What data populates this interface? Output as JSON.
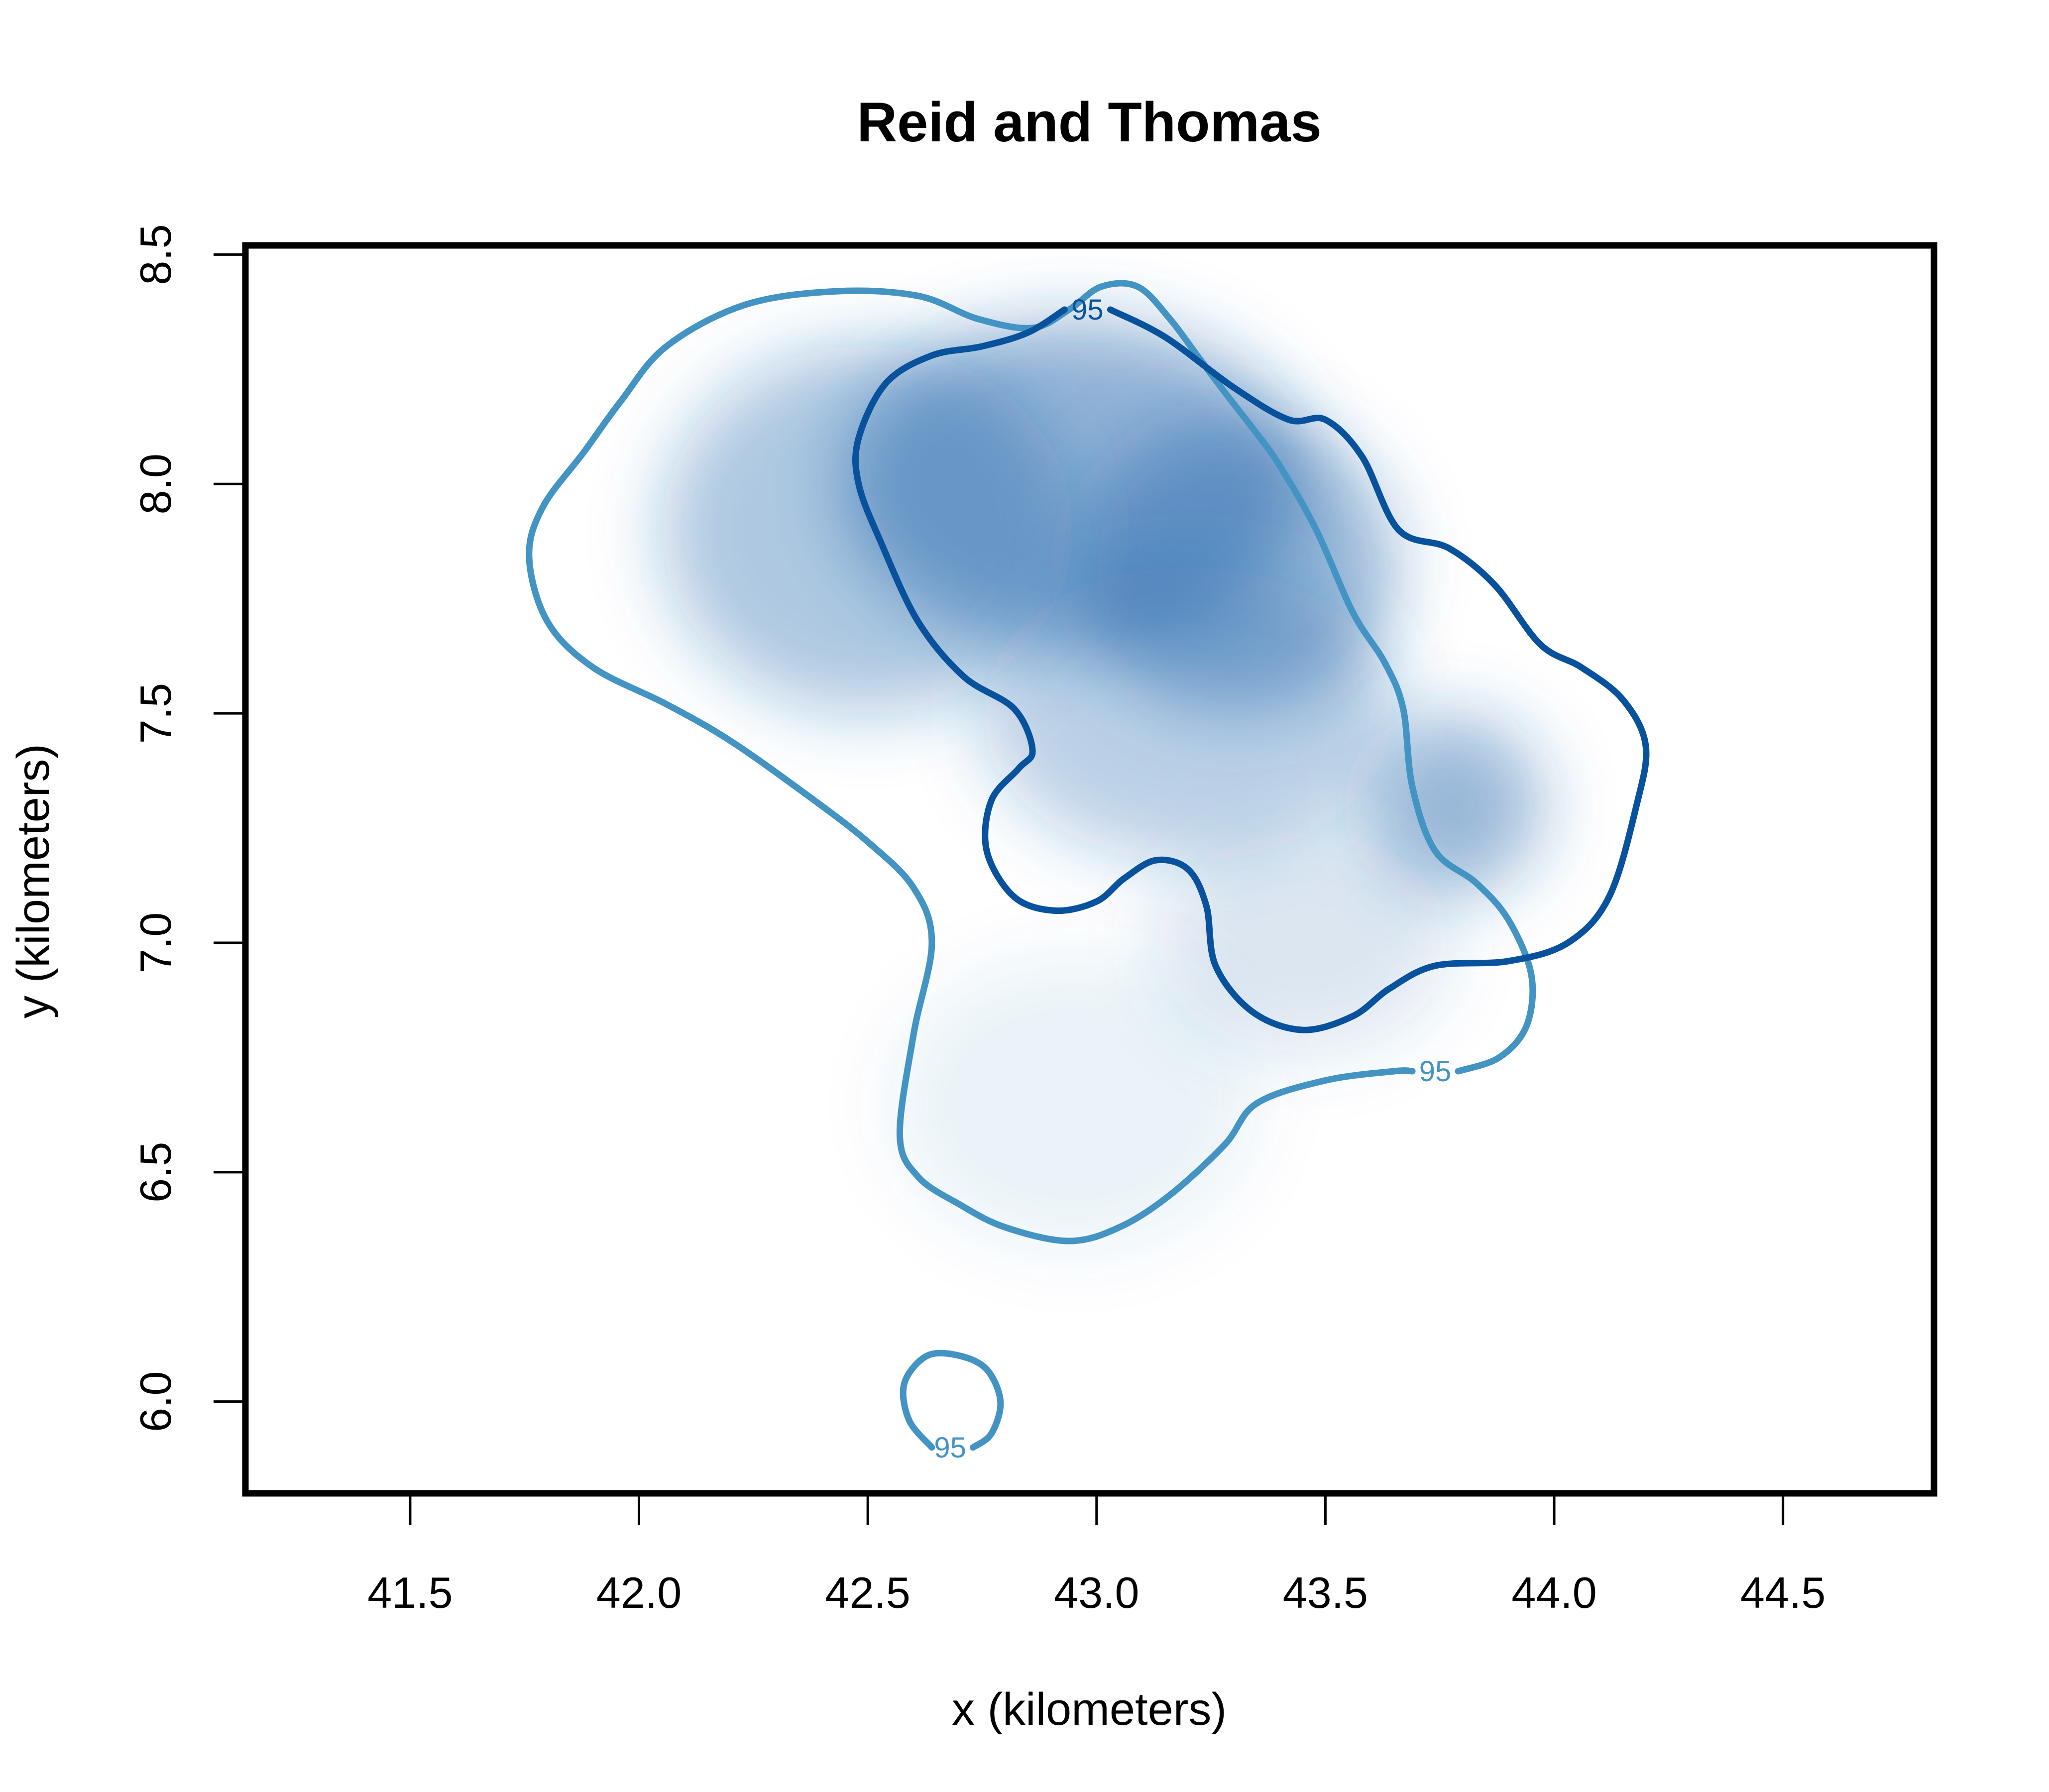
{
  "chart_data": {
    "type": "contour",
    "title": "Reid and Thomas",
    "xlabel": "x (kilometers)",
    "ylabel": "y (kilometers)",
    "xlim": [
      41.14,
      44.83
    ],
    "ylim": [
      5.8,
      8.52
    ],
    "x_ticks": [
      41.5,
      42.0,
      42.5,
      43.0,
      43.5,
      44.0,
      44.5
    ],
    "x_tick_labels": [
      "41.5",
      "42.0",
      "42.5",
      "43.0",
      "43.5",
      "44.0",
      "44.5"
    ],
    "y_ticks": [
      6.0,
      6.5,
      7.0,
      7.5,
      8.0,
      8.5
    ],
    "y_tick_labels": [
      "6.0",
      "6.5",
      "7.0",
      "7.5",
      "8.0",
      "8.5"
    ],
    "density_color": "#2166ac",
    "density_hotspots": [
      {
        "x": 42.95,
        "y": 8.0,
        "sd_x": 0.32,
        "sd_y": 0.22,
        "weight": 0.9
      },
      {
        "x": 43.3,
        "y": 7.82,
        "sd_x": 0.22,
        "sd_y": 0.2,
        "weight": 0.85
      },
      {
        "x": 42.5,
        "y": 7.9,
        "sd_x": 0.28,
        "sd_y": 0.25,
        "weight": 0.65
      },
      {
        "x": 43.2,
        "y": 7.5,
        "sd_x": 0.28,
        "sd_y": 0.2,
        "weight": 0.55
      },
      {
        "x": 43.78,
        "y": 7.3,
        "sd_x": 0.12,
        "sd_y": 0.12,
        "weight": 0.85
      },
      {
        "x": 43.45,
        "y": 7.0,
        "sd_x": 0.2,
        "sd_y": 0.15,
        "weight": 0.3
      },
      {
        "x": 42.95,
        "y": 6.65,
        "sd_x": 0.25,
        "sd_y": 0.2,
        "weight": 0.15
      }
    ],
    "contours": [
      {
        "level_label": "95",
        "color": "#4393c3",
        "label_at": {
          "x": 43.74,
          "y": 6.72
        },
        "points": [
          [
            43.79,
            6.72
          ],
          [
            43.88,
            6.75
          ],
          [
            43.94,
            6.82
          ],
          [
            43.95,
            6.93
          ],
          [
            43.9,
            7.05
          ],
          [
            43.83,
            7.13
          ],
          [
            43.74,
            7.2
          ],
          [
            43.69,
            7.34
          ],
          [
            43.67,
            7.51
          ],
          [
            43.63,
            7.61
          ],
          [
            43.56,
            7.72
          ],
          [
            43.48,
            7.9
          ],
          [
            43.4,
            8.04
          ],
          [
            43.35,
            8.11
          ],
          [
            43.28,
            8.2
          ],
          [
            43.22,
            8.28
          ],
          [
            43.16,
            8.36
          ],
          [
            43.09,
            8.43
          ],
          [
            43.01,
            8.43
          ],
          [
            42.94,
            8.38
          ],
          [
            42.86,
            8.34
          ],
          [
            42.74,
            8.36
          ],
          [
            42.61,
            8.41
          ],
          [
            42.43,
            8.42
          ],
          [
            42.23,
            8.39
          ],
          [
            42.06,
            8.3
          ],
          [
            41.96,
            8.18
          ],
          [
            41.88,
            8.07
          ],
          [
            41.79,
            7.95
          ],
          [
            41.76,
            7.84
          ],
          [
            41.8,
            7.7
          ],
          [
            41.9,
            7.6
          ],
          [
            42.06,
            7.52
          ],
          [
            42.2,
            7.44
          ],
          [
            42.37,
            7.32
          ],
          [
            42.5,
            7.22
          ],
          [
            42.6,
            7.12
          ],
          [
            42.64,
            7.0
          ],
          [
            42.6,
            6.8
          ],
          [
            42.57,
            6.58
          ],
          [
            42.61,
            6.49
          ],
          [
            42.7,
            6.43
          ],
          [
            42.8,
            6.38
          ],
          [
            42.94,
            6.35
          ],
          [
            43.05,
            6.38
          ],
          [
            43.16,
            6.45
          ],
          [
            43.28,
            6.56
          ],
          [
            43.35,
            6.65
          ],
          [
            43.5,
            6.7
          ],
          [
            43.65,
            6.72
          ],
          [
            43.69,
            6.72
          ]
        ]
      },
      {
        "level_label": "95",
        "color": "#4393c3",
        "label_at": {
          "x": 42.68,
          "y": 5.9
        },
        "points": [
          [
            42.73,
            5.9
          ],
          [
            42.77,
            5.93
          ],
          [
            42.79,
            6.0
          ],
          [
            42.76,
            6.07
          ],
          [
            42.7,
            6.1
          ],
          [
            42.63,
            6.1
          ],
          [
            42.58,
            6.04
          ],
          [
            42.59,
            5.96
          ],
          [
            42.64,
            5.9
          ]
        ]
      },
      {
        "level_label": "95",
        "color": "#08519c",
        "label_at": {
          "x": 42.98,
          "y": 8.38
        },
        "points": [
          [
            43.03,
            8.38
          ],
          [
            43.15,
            8.32
          ],
          [
            43.3,
            8.21
          ],
          [
            43.42,
            8.14
          ],
          [
            43.5,
            8.14
          ],
          [
            43.58,
            8.06
          ],
          [
            43.66,
            7.9
          ],
          [
            43.77,
            7.86
          ],
          [
            43.87,
            7.78
          ],
          [
            43.97,
            7.65
          ],
          [
            44.06,
            7.6
          ],
          [
            44.15,
            7.53
          ],
          [
            44.2,
            7.43
          ],
          [
            44.18,
            7.3
          ],
          [
            44.12,
            7.1
          ],
          [
            44.03,
            7.0
          ],
          [
            43.9,
            6.96
          ],
          [
            43.74,
            6.95
          ],
          [
            43.64,
            6.9
          ],
          [
            43.56,
            6.84
          ],
          [
            43.45,
            6.81
          ],
          [
            43.34,
            6.85
          ],
          [
            43.26,
            6.95
          ],
          [
            43.24,
            7.08
          ],
          [
            43.2,
            7.16
          ],
          [
            43.13,
            7.18
          ],
          [
            43.06,
            7.14
          ],
          [
            43.0,
            7.09
          ],
          [
            42.91,
            7.07
          ],
          [
            42.82,
            7.1
          ],
          [
            42.76,
            7.2
          ],
          [
            42.77,
            7.31
          ],
          [
            42.83,
            7.38
          ],
          [
            42.86,
            7.42
          ],
          [
            42.82,
            7.51
          ],
          [
            42.71,
            7.58
          ],
          [
            42.61,
            7.7
          ],
          [
            42.53,
            7.87
          ],
          [
            42.48,
            8.0
          ],
          [
            42.48,
            8.1
          ],
          [
            42.54,
            8.22
          ],
          [
            42.64,
            8.28
          ],
          [
            42.75,
            8.3
          ],
          [
            42.85,
            8.33
          ],
          [
            42.93,
            8.38
          ]
        ]
      }
    ],
    "grid": false,
    "legend": "none"
  }
}
